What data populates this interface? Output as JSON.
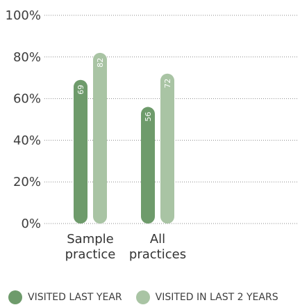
{
  "chart_data": {
    "type": "bar",
    "categories": [
      [
        "Sample",
        "practice"
      ],
      [
        "All",
        "practices"
      ]
    ],
    "series": [
      {
        "name": "VISITED LAST YEAR",
        "values": [
          69,
          56
        ],
        "color": "#6e9b6b"
      },
      {
        "name": "VISITED IN LAST 2 YEARS",
        "values": [
          82,
          72
        ],
        "color": "#a9c4a4"
      }
    ],
    "ylim": [
      0,
      100
    ],
    "yticks": [
      0,
      20,
      40,
      60,
      80,
      100
    ],
    "ytick_labels": [
      "0%",
      "20%",
      "40%",
      "60%",
      "80%",
      "100%"
    ],
    "grid": true,
    "legend_position": "bottom"
  }
}
